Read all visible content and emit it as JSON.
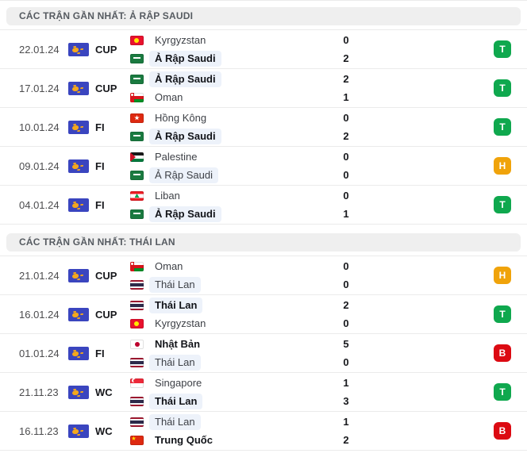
{
  "icons": {
    "competition_badge": "afc-asian-map-logo",
    "team_flag": "national-flag"
  },
  "colors": {
    "win_badge": "#0fa84e",
    "draw_badge": "#f0a30a",
    "loss_badge": "#dc0a12",
    "focus_team_highlight": "#edf2fa",
    "competition_badge_blue": "#3a45bf",
    "competition_badge_gold": "#f5a81c",
    "section_header_bg": "#efefef"
  },
  "sections": [
    {
      "title": "CÁC TRẬN GẦN NHẤT: Ả RẬP SAUDI",
      "rows": [
        {
          "date": "22.01.24",
          "competition": "CUP",
          "result": "T",
          "teams": [
            {
              "name": "Kyrgyzstan",
              "flag": "kyrgyzstan",
              "score": 0,
              "winner": false,
              "focus": false
            },
            {
              "name": "Ả Rập Saudi",
              "flag": "saudi",
              "score": 2,
              "winner": true,
              "focus": true
            }
          ]
        },
        {
          "date": "17.01.24",
          "competition": "CUP",
          "result": "T",
          "teams": [
            {
              "name": "Ả Rập Saudi",
              "flag": "saudi",
              "score": 2,
              "winner": true,
              "focus": true
            },
            {
              "name": "Oman",
              "flag": "oman",
              "score": 1,
              "winner": false,
              "focus": false
            }
          ]
        },
        {
          "date": "10.01.24",
          "competition": "FI",
          "result": "T",
          "teams": [
            {
              "name": "Hồng Kông",
              "flag": "hongkong",
              "score": 0,
              "winner": false,
              "focus": false
            },
            {
              "name": "Ả Rập Saudi",
              "flag": "saudi",
              "score": 2,
              "winner": true,
              "focus": true
            }
          ]
        },
        {
          "date": "09.01.24",
          "competition": "FI",
          "result": "H",
          "teams": [
            {
              "name": "Palestine",
              "flag": "palestine",
              "score": 0,
              "winner": false,
              "focus": false
            },
            {
              "name": "Ả Rập Saudi",
              "flag": "saudi",
              "score": 0,
              "winner": false,
              "focus": true
            }
          ]
        },
        {
          "date": "04.01.24",
          "competition": "FI",
          "result": "T",
          "teams": [
            {
              "name": "Liban",
              "flag": "liban",
              "score": 0,
              "winner": false,
              "focus": false
            },
            {
              "name": "Ả Rập Saudi",
              "flag": "saudi",
              "score": 1,
              "winner": true,
              "focus": true
            }
          ]
        }
      ]
    },
    {
      "title": "CÁC TRẬN GẦN NHẤT: THÁI LAN",
      "rows": [
        {
          "date": "21.01.24",
          "competition": "CUP",
          "result": "H",
          "teams": [
            {
              "name": "Oman",
              "flag": "oman",
              "score": 0,
              "winner": false,
              "focus": false
            },
            {
              "name": "Thái Lan",
              "flag": "thailand",
              "score": 0,
              "winner": false,
              "focus": true
            }
          ]
        },
        {
          "date": "16.01.24",
          "competition": "CUP",
          "result": "T",
          "teams": [
            {
              "name": "Thái Lan",
              "flag": "thailand",
              "score": 2,
              "winner": true,
              "focus": true
            },
            {
              "name": "Kyrgyzstan",
              "flag": "kyrgyzstan",
              "score": 0,
              "winner": false,
              "focus": false
            }
          ]
        },
        {
          "date": "01.01.24",
          "competition": "FI",
          "result": "B",
          "teams": [
            {
              "name": "Nhật Bản",
              "flag": "japan",
              "score": 5,
              "winner": true,
              "focus": false
            },
            {
              "name": "Thái Lan",
              "flag": "thailand",
              "score": 0,
              "winner": false,
              "focus": true
            }
          ]
        },
        {
          "date": "21.11.23",
          "competition": "WC",
          "result": "T",
          "teams": [
            {
              "name": "Singapore",
              "flag": "singapore",
              "score": 1,
              "winner": false,
              "focus": false
            },
            {
              "name": "Thái Lan",
              "flag": "thailand",
              "score": 3,
              "winner": true,
              "focus": true
            }
          ]
        },
        {
          "date": "16.11.23",
          "competition": "WC",
          "result": "B",
          "teams": [
            {
              "name": "Thái Lan",
              "flag": "thailand",
              "score": 1,
              "winner": false,
              "focus": true
            },
            {
              "name": "Trung Quốc",
              "flag": "china",
              "score": 2,
              "winner": true,
              "focus": false
            }
          ]
        }
      ]
    }
  ]
}
